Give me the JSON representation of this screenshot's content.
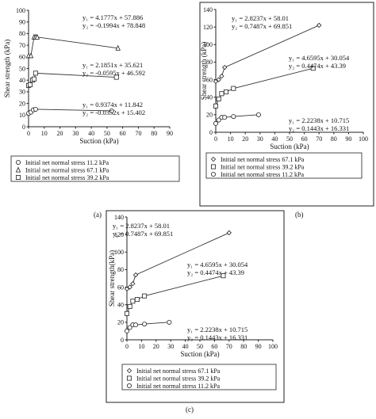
{
  "chart_data": [
    {
      "type": "line",
      "caption": "(a)",
      "xlabel": "Suction (kPa)",
      "ylabel": "Shear strength (kPa)",
      "xlim": [
        0,
        90
      ],
      "ylim": [
        0,
        100
      ],
      "xticks": [
        0,
        10,
        20,
        30,
        40,
        50,
        60,
        70,
        80,
        90
      ],
      "yticks": [
        0,
        10,
        20,
        30,
        40,
        50,
        60,
        70,
        80,
        90,
        100
      ],
      "legend": [
        "Initial net normal stress 11.2 kPa",
        "Initial net normal stress 67.1 kPa",
        "Initial net normal stress 39.2 kPa"
      ],
      "legend_markers": [
        "circle",
        "triangle",
        "square"
      ],
      "series": [
        {
          "name": "Initial net normal stress 67.1 kPa",
          "marker": "triangle",
          "x": [
            0,
            1.5,
            3.5,
            4.5,
            5.5,
            57
          ],
          "y": [
            61,
            61,
            77,
            77,
            77,
            67.5
          ]
        },
        {
          "name": "Initial net normal stress 39.2 kPa",
          "marker": "square",
          "x": [
            0,
            1,
            2.5,
            3.5,
            4.5,
            56
          ],
          "y": [
            35.5,
            36,
            40,
            41,
            46,
            42.5
          ]
        },
        {
          "name": "Initial net normal stress 11.2 kPa",
          "marker": "circle",
          "x": [
            0,
            1.5,
            3,
            4.5,
            53
          ],
          "y": [
            11.5,
            12.5,
            14.5,
            15,
            13.6
          ]
        }
      ],
      "equations": [
        {
          "y1": "y₁ = 4.1777x + 57.886",
          "y2": "y₂ = -0.1994x + 78.848"
        },
        {
          "y1": "y₁ = 2.1851x + 35.621",
          "y2": "y₂ = -0.0595x + 46.592"
        },
        {
          "y1": "y₁ = 0.9374x + 11.842",
          "y2": "y₂ = -0.0352x + 15.402"
        }
      ]
    },
    {
      "type": "line",
      "caption": "(b)",
      "xlabel": "Suction (kPa)",
      "ylabel": "Shear strength (kPa)",
      "xlim": [
        0,
        100
      ],
      "ylim": [
        0,
        140
      ],
      "xticks": [
        0,
        10,
        20,
        30,
        40,
        50,
        60,
        70,
        80,
        90,
        100
      ],
      "yticks": [
        0,
        20,
        40,
        60,
        80,
        100,
        120,
        140
      ],
      "legend": [
        "Initial net normal stress 67.1 kPa",
        "Initial net normal stress 39.2 kPa",
        "Initial net normal stress 11.2 kPa"
      ],
      "legend_markers": [
        "diamond",
        "square",
        "circle"
      ],
      "series": [
        {
          "name": "Initial net normal stress 67.1 kPa",
          "marker": "diamond",
          "x": [
            0,
            2,
            4,
            6,
            70
          ],
          "y": [
            58,
            60,
            64,
            74,
            122
          ]
        },
        {
          "name": "Initial net normal stress 39.2 kPa",
          "marker": "square",
          "x": [
            0,
            2,
            4,
            7,
            12,
            66
          ],
          "y": [
            30,
            38,
            44,
            46,
            50,
            73
          ]
        },
        {
          "name": "Initial net normal stress 11.2 kPa",
          "marker": "circle",
          "x": [
            0,
            2,
            4,
            6,
            12,
            29
          ],
          "y": [
            10,
            14,
            17,
            17,
            18,
            20
          ]
        }
      ],
      "equations": [
        {
          "y1": "y₁ = 2.8237x + 58.01",
          "y2": "y₂ = 0.7487x + 69.851"
        },
        {
          "y1": "y₁ = 4.6595x + 30.054",
          "y2": "y₂ = 0.4474x + 43.39"
        },
        {
          "y1": "y₁ = 2.2238x + 10.715",
          "y2": "y₂ = 0.1443x + 16.331"
        }
      ]
    },
    {
      "type": "line",
      "caption": "(c)",
      "xlabel": "Suction (kPa)",
      "ylabel": "Shear strength(kPa)",
      "xlim": [
        0,
        100
      ],
      "ylim": [
        0,
        140
      ],
      "xticks": [
        0,
        10,
        20,
        30,
        40,
        50,
        60,
        70,
        80,
        90,
        100
      ],
      "yticks": [
        0,
        20,
        40,
        60,
        80,
        100,
        120,
        140
      ],
      "legend": [
        "Initial net normal stress 67.1 kPa",
        "Initial net normal stress 39.2 kPa",
        "Initial net normal stress 11.2 kPa"
      ],
      "legend_markers": [
        "diamond",
        "square",
        "circle"
      ],
      "series": [
        {
          "name": "Initial net normal stress 67.1 kPa",
          "marker": "diamond",
          "x": [
            0,
            2,
            4,
            6,
            70
          ],
          "y": [
            58,
            60,
            64,
            74,
            122
          ]
        },
        {
          "name": "Initial net normal stress 39.2 kPa",
          "marker": "square",
          "x": [
            0,
            2,
            4,
            7,
            12,
            66
          ],
          "y": [
            30,
            38,
            44,
            46,
            50,
            73
          ]
        },
        {
          "name": "Initial net normal stress 11.2 kPa",
          "marker": "circle",
          "x": [
            0,
            2,
            4,
            6,
            12,
            29
          ],
          "y": [
            10,
            14,
            17,
            17,
            18,
            20
          ]
        }
      ],
      "equations": [
        {
          "y1": "y₁ = 2.8237x + 58.01",
          "y2": "y₂ = 0.7487x + 69.851"
        },
        {
          "y1": "y₁ = 4.6595x + 30.054",
          "y2": "y₂ = 0.4474x + 43.39"
        },
        {
          "y1": "y₁ = 2.2238x + 10.715",
          "y2": "y₂ = 0.1443x + 16.331"
        }
      ]
    }
  ]
}
